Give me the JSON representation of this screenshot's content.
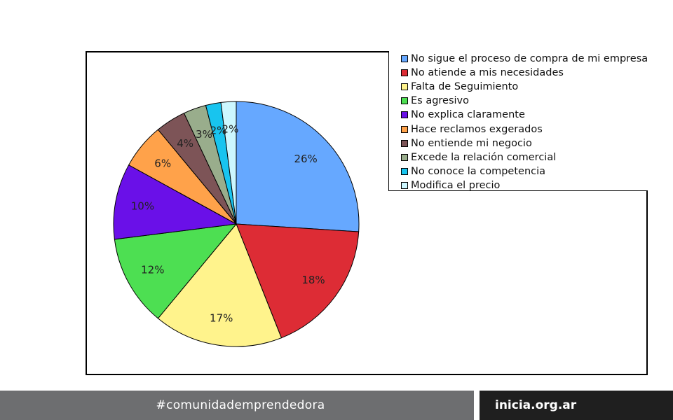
{
  "chart_data": {
    "type": "pie",
    "categories": [
      "No sigue el proceso de compra de mi empresa",
      "No atiende a mis necesidades",
      "Falta de Seguimiento",
      "Es agresivo",
      "No explica claramente",
      "Hace reclamos exgerados",
      "No entiende mi negocio",
      "Excede la relación comercial",
      "No conoce la competencia",
      "Modifica el precio"
    ],
    "values": [
      26,
      18,
      17,
      12,
      10,
      6,
      4,
      3,
      2,
      2
    ],
    "labels": [
      "26%",
      "18%",
      "17%",
      "12%",
      "10%",
      "6%",
      "4%",
      "3%",
      "2%",
      "2%"
    ],
    "colors": [
      "#66a8ff",
      "#dd2c35",
      "#fff38c",
      "#4ddf52",
      "#6a10e8",
      "#ffa24a",
      "#7d5457",
      "#99ad8c",
      "#18c4ef",
      "#ccf7ff"
    ],
    "legend_position": "top-right",
    "start_angle_deg": 0,
    "direction": "clockwise"
  },
  "footer": {
    "hashtag": "#comunidademprendedora",
    "site": "inicia.org.ar"
  }
}
